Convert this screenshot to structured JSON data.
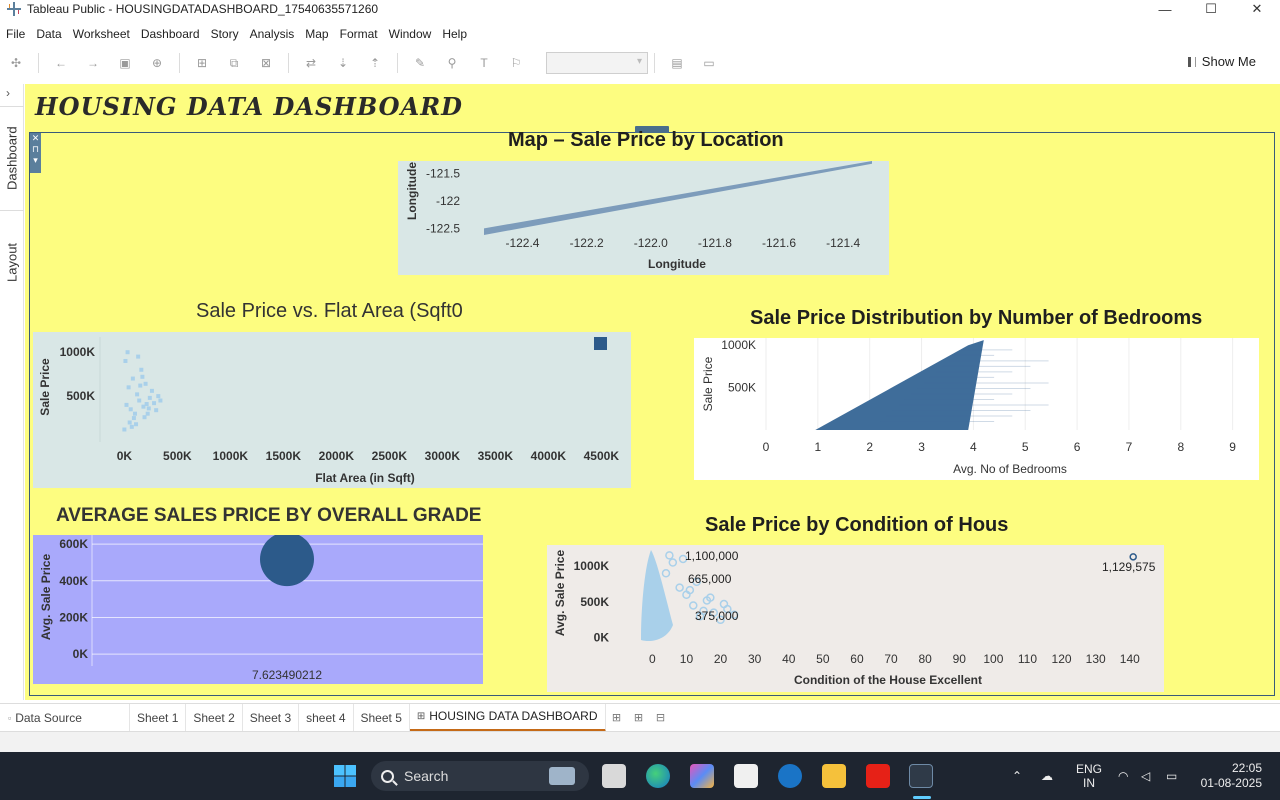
{
  "window": {
    "title": "Tableau Public - HOUSINGDATADASHBOARD_17540635571260",
    "controls": [
      "—",
      "☐",
      "✕"
    ]
  },
  "menu": [
    "File",
    "Data",
    "Worksheet",
    "Dashboard",
    "Story",
    "Analysis",
    "Map",
    "Format",
    "Window",
    "Help"
  ],
  "toolbar": {
    "show_me": "Show Me"
  },
  "left_rail": {
    "tab_dashboard": "Dashboard",
    "tab_layout": "Layout",
    "collapse": "›"
  },
  "dashboard": {
    "title": "HOUSING DATA DASHBOARD",
    "bg_color": "#fdfd80"
  },
  "sheets": {
    "map": {
      "title": "Map – Sale Price by Location",
      "chart_data": {
        "type": "area",
        "xlabel": "Longitude",
        "ylabel": "Longitude",
        "x_ticks": [
          "-122.4",
          "-122.2",
          "-122.0",
          "-121.8",
          "-121.6",
          "-121.4"
        ],
        "y_ticks": [
          "-121.5",
          "-122",
          "-122.5"
        ],
        "xlim": [
          -122.52,
          -121.31
        ],
        "ylim": [
          -122.62,
          -121.27
        ],
        "series": [
          {
            "x": [
              -122.52,
              -121.31,
              -121.31,
              -122.52
            ],
            "y": [
              -122.5,
              -121.27,
              -121.32,
              -122.62
            ]
          }
        ],
        "color": "#7d9cbb"
      }
    },
    "flat_area": {
      "title": "Sale Price vs. Flat Area (Sqft0",
      "chart_data": {
        "type": "scatter",
        "xlabel": "Flat Area (in Sqft)",
        "ylabel": "Sale Price",
        "x_ticks": [
          "0K",
          "500K",
          "1000K",
          "1500K",
          "2000K",
          "2500K",
          "3000K",
          "3500K",
          "4000K",
          "4500K"
        ],
        "y_ticks": [
          "1000K",
          "500K"
        ],
        "xlim": [
          -230,
          4780
        ],
        "ylim": [
          -250,
          1230
        ],
        "points": [
          [
            0,
            120
          ],
          [
            20,
            400
          ],
          [
            40,
            600
          ],
          [
            60,
            350
          ],
          [
            80,
            700
          ],
          [
            100,
            300
          ],
          [
            120,
            520
          ],
          [
            140,
            450
          ],
          [
            160,
            800
          ],
          [
            180,
            380
          ],
          [
            200,
            640
          ],
          [
            220,
            300
          ],
          [
            240,
            480
          ],
          [
            260,
            560
          ],
          [
            280,
            420
          ],
          [
            300,
            340
          ],
          [
            320,
            500
          ],
          [
            340,
            450
          ],
          [
            10,
            900
          ],
          [
            30,
            1000
          ],
          [
            50,
            200
          ],
          [
            70,
            150
          ],
          [
            90,
            250
          ],
          [
            110,
            180
          ],
          [
            130,
            950
          ],
          [
            150,
            620
          ],
          [
            170,
            720
          ],
          [
            190,
            260
          ],
          [
            210,
            410
          ],
          [
            230,
            360
          ]
        ],
        "legend_color": "#2c5a8a",
        "color": "#a9d0ea"
      }
    },
    "bedrooms": {
      "title": "Sale Price Distribution by Number of Bedrooms",
      "chart_data": {
        "type": "bar",
        "xlabel": "Avg. No of Bedrooms",
        "ylabel": "Sale Price",
        "x_ticks": [
          "0",
          "1",
          "2",
          "3",
          "4",
          "5",
          "6",
          "7",
          "8",
          "9"
        ],
        "y_ticks": [
          "1000K",
          "500K"
        ],
        "xlim": [
          0,
          9.2
        ],
        "ylim": [
          0,
          1085
        ],
        "points": [
          [
            0.95,
            0
          ],
          [
            3.9,
            1000
          ],
          [
            4.2,
            1060
          ]
        ],
        "color": "#3f6d9a"
      }
    },
    "grade": {
      "title": "AVERAGE SALES PRICE BY OVERALL GRADE",
      "chart_data": {
        "type": "scatter",
        "xlabel": "",
        "ylabel": "Avg. Sale Price",
        "x_ticks": [
          "7.623490212"
        ],
        "y_ticks": [
          "600K",
          "400K",
          "200K",
          "0K"
        ],
        "ylim": [
          -65,
          650
        ],
        "points": [
          [
            7.623490212,
            518
          ]
        ],
        "color": "#2c5a8a",
        "bg_color": "#a9a9fb"
      }
    },
    "condition": {
      "title": "Sale Price by Condition of Hous",
      "chart_data": {
        "type": "scatter",
        "xlabel": "Condition of the House Excellent",
        "ylabel": "Avg. Sale Price",
        "x_ticks": [
          "0",
          "10",
          "20",
          "30",
          "40",
          "50",
          "60",
          "70",
          "80",
          "90",
          "100",
          "110",
          "120",
          "130",
          "140"
        ],
        "y_ticks": [
          "1000K",
          "500K",
          "0K"
        ],
        "xlim": [
          -4.5,
          151.5
        ],
        "ylim": [
          -60,
          1295
        ],
        "annotations": [
          "1,100,000",
          "665,000",
          "375,000",
          "1,129,575"
        ],
        "points": [
          [
            2,
            200
          ],
          [
            4,
            900
          ],
          [
            6,
            1050
          ],
          [
            8,
            700
          ],
          [
            10,
            600
          ],
          [
            12,
            450
          ],
          [
            14,
            300
          ],
          [
            16,
            520
          ],
          [
            18,
            350
          ],
          [
            20,
            250
          ],
          [
            22,
            400
          ],
          [
            24,
            320
          ],
          [
            3,
            80
          ],
          [
            5,
            1150
          ],
          [
            9,
            1100
          ],
          [
            13,
            780
          ],
          [
            11,
            665
          ],
          [
            17,
            560
          ],
          [
            21,
            470
          ],
          [
            15,
            375
          ],
          [
            141,
            1129.575
          ]
        ],
        "color": "#a9d0ea",
        "outlier_color": "#2c5a8a"
      }
    }
  },
  "sheet_tabs": [
    "Data Source",
    "Sheet 1",
    "Sheet 2",
    "Sheet 3",
    "sheet 4",
    "Sheet 5",
    "HOUSING DATA DASHBOARD"
  ],
  "taskbar": {
    "search": "Search",
    "lang": "ENG",
    "region": "IN",
    "time": "22:05",
    "date": "01-08-2025"
  }
}
